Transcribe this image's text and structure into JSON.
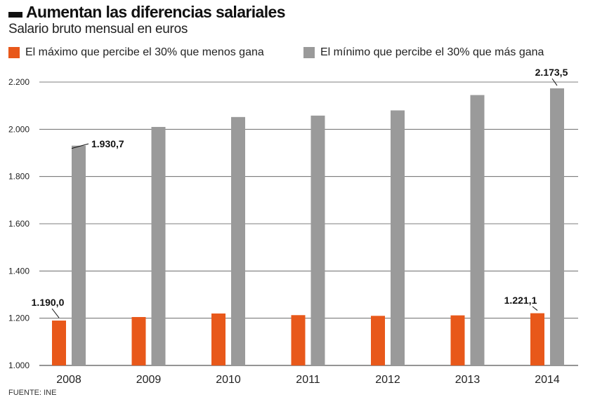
{
  "title": "Aumentan las diferencias salariales",
  "subtitle": "Salario bruto mensual en euros",
  "source": "FUENTE: INE",
  "colors": {
    "series1": "#e8581a",
    "series2": "#9a9a9a",
    "grid": "#555555"
  },
  "chart_data": {
    "type": "bar",
    "categories": [
      "2008",
      "2009",
      "2010",
      "2011",
      "2012",
      "2013",
      "2014"
    ],
    "series": [
      {
        "name": "El máximo que percibe el 30% que menos gana",
        "values": [
          1190.0,
          1205,
          1220,
          1213,
          1210,
          1212,
          1221.1
        ]
      },
      {
        "name": "El mínimo que percibe el 30% que más gana",
        "values": [
          1930.7,
          2010,
          2052,
          2058,
          2080,
          2145,
          2173.5
        ]
      }
    ],
    "yticks": [
      "1.000",
      "1.200",
      "1.400",
      "1.600",
      "1.800",
      "2.000",
      "2.200"
    ],
    "ylim": [
      1000,
      2200
    ],
    "grid": true,
    "legend": "top",
    "annotations": [
      {
        "series": 0,
        "index": 0,
        "text": "1.190,0"
      },
      {
        "series": 1,
        "index": 0,
        "text": "1.930,7"
      },
      {
        "series": 0,
        "index": 6,
        "text": "1.221,1"
      },
      {
        "series": 1,
        "index": 6,
        "text": "2.173,5"
      }
    ]
  }
}
